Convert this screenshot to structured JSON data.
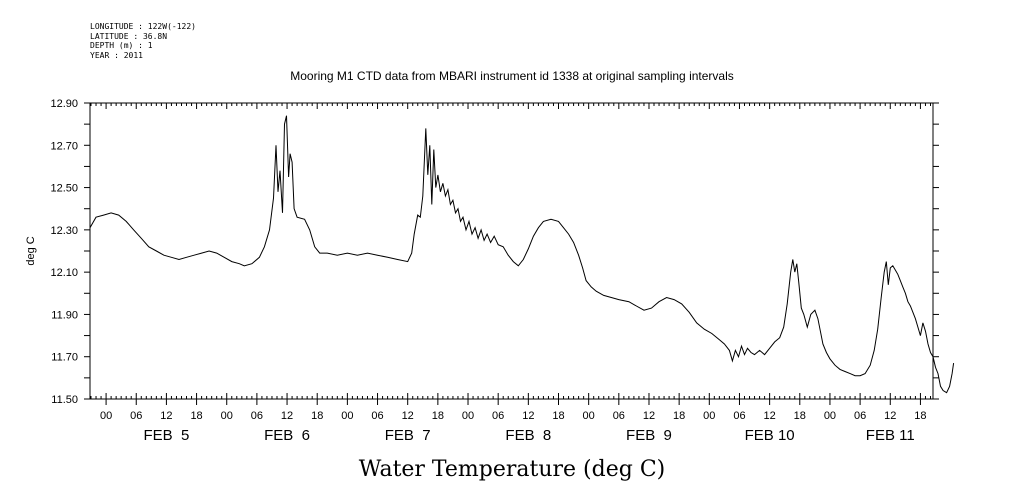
{
  "header": {
    "longitude": "LONGITUDE : 122W(-122)",
    "latitude": "LATITUDE : 36.8N",
    "depth": "DEPTH (m) : 1",
    "year": "YEAR : 2011"
  },
  "chart_data": {
    "type": "line",
    "title": "Mooring M1 CTD data from MBARI instrument id 1338 at original sampling intervals",
    "xlabel": "Water Temperature (deg C)",
    "ylabel": "deg C",
    "x_unit": "hours since FEB 4 00:00 (2011)",
    "xlim": [
      20.8,
      188.5
    ],
    "ylim": [
      11.5,
      12.9
    ],
    "y_ticks": [
      "11.50",
      "11.70",
      "11.90",
      "12.10",
      "12.30",
      "12.50",
      "12.70",
      "12.90"
    ],
    "x_hour_labels": [
      "00",
      "06",
      "12",
      "18"
    ],
    "day_labels": [
      "FEB  5",
      "FEB  6",
      "FEB  7",
      "FEB  8",
      "FEB  9",
      "FEB 10",
      "FEB 11"
    ],
    "grid": false,
    "series": [
      {
        "color": "#000000",
        "points": [
          [
            20.8,
            12.31
          ],
          [
            22,
            12.36
          ],
          [
            23.5,
            12.37
          ],
          [
            25,
            12.38
          ],
          [
            26.5,
            12.37
          ],
          [
            28,
            12.34
          ],
          [
            29.5,
            12.3
          ],
          [
            31,
            12.26
          ],
          [
            32.5,
            12.22
          ],
          [
            34,
            12.2
          ],
          [
            35.5,
            12.18
          ],
          [
            37,
            12.17
          ],
          [
            38.5,
            12.16
          ],
          [
            40,
            12.17
          ],
          [
            41.5,
            12.18
          ],
          [
            43,
            12.19
          ],
          [
            44.5,
            12.2
          ],
          [
            46,
            12.19
          ],
          [
            47.5,
            12.17
          ],
          [
            49,
            12.15
          ],
          [
            50.5,
            12.14
          ],
          [
            51.5,
            12.13
          ],
          [
            53,
            12.14
          ],
          [
            54.5,
            12.17
          ],
          [
            55.5,
            12.22
          ],
          [
            56.5,
            12.3
          ],
          [
            57.3,
            12.45
          ],
          [
            57.8,
            12.7
          ],
          [
            58.2,
            12.48
          ],
          [
            58.6,
            12.58
          ],
          [
            59.1,
            12.38
          ],
          [
            59.5,
            12.8
          ],
          [
            59.9,
            12.84
          ],
          [
            60.3,
            12.55
          ],
          [
            60.6,
            12.66
          ],
          [
            61,
            12.62
          ],
          [
            61.4,
            12.4
          ],
          [
            62,
            12.36
          ],
          [
            63.5,
            12.35
          ],
          [
            64.5,
            12.3
          ],
          [
            65.5,
            12.22
          ],
          [
            66.5,
            12.19
          ],
          [
            68,
            12.19
          ],
          [
            70,
            12.18
          ],
          [
            72,
            12.19
          ],
          [
            74,
            12.18
          ],
          [
            76,
            12.19
          ],
          [
            78,
            12.18
          ],
          [
            80,
            12.17
          ],
          [
            82,
            12.16
          ],
          [
            84,
            12.15
          ],
          [
            84.8,
            12.19
          ],
          [
            85.3,
            12.28
          ],
          [
            86,
            12.37
          ],
          [
            86.5,
            12.36
          ],
          [
            87,
            12.46
          ],
          [
            87.6,
            12.78
          ],
          [
            88,
            12.56
          ],
          [
            88.4,
            12.7
          ],
          [
            88.8,
            12.42
          ],
          [
            89.2,
            12.68
          ],
          [
            89.6,
            12.5
          ],
          [
            90,
            12.56
          ],
          [
            90.5,
            12.48
          ],
          [
            91,
            12.52
          ],
          [
            91.5,
            12.46
          ],
          [
            92,
            12.49
          ],
          [
            92.5,
            12.42
          ],
          [
            93,
            12.44
          ],
          [
            93.5,
            12.38
          ],
          [
            94,
            12.4
          ],
          [
            94.5,
            12.34
          ],
          [
            95,
            12.36
          ],
          [
            95.6,
            12.3
          ],
          [
            96.2,
            12.34
          ],
          [
            96.8,
            12.28
          ],
          [
            97.4,
            12.31
          ],
          [
            98,
            12.26
          ],
          [
            98.6,
            12.3
          ],
          [
            99.2,
            12.25
          ],
          [
            99.8,
            12.28
          ],
          [
            100.5,
            12.24
          ],
          [
            101.2,
            12.27
          ],
          [
            102,
            12.23
          ],
          [
            103,
            12.22
          ],
          [
            104,
            12.18
          ],
          [
            105,
            12.15
          ],
          [
            106,
            12.13
          ],
          [
            107,
            12.16
          ],
          [
            108,
            12.21
          ],
          [
            109,
            12.27
          ],
          [
            110,
            12.31
          ],
          [
            111,
            12.34
          ],
          [
            112.5,
            12.35
          ],
          [
            114,
            12.34
          ],
          [
            115,
            12.31
          ],
          [
            116,
            12.28
          ],
          [
            117,
            12.24
          ],
          [
            118,
            12.18
          ],
          [
            118.8,
            12.12
          ],
          [
            119.5,
            12.06
          ],
          [
            120.5,
            12.03
          ],
          [
            121.5,
            12.01
          ],
          [
            123,
            11.99
          ],
          [
            124.5,
            11.98
          ],
          [
            126,
            11.97
          ],
          [
            128,
            11.96
          ],
          [
            129.5,
            11.94
          ],
          [
            131,
            11.92
          ],
          [
            132.5,
            11.93
          ],
          [
            134,
            11.96
          ],
          [
            135.5,
            11.98
          ],
          [
            137,
            11.97
          ],
          [
            138.5,
            11.95
          ],
          [
            140,
            11.91
          ],
          [
            141.5,
            11.86
          ],
          [
            143,
            11.83
          ],
          [
            144.5,
            11.81
          ],
          [
            146,
            11.78
          ],
          [
            147,
            11.76
          ],
          [
            148,
            11.73
          ],
          [
            148.6,
            11.68
          ],
          [
            149.2,
            11.73
          ],
          [
            149.8,
            11.7
          ],
          [
            150.4,
            11.75
          ],
          [
            151,
            11.71
          ],
          [
            151.6,
            11.74
          ],
          [
            152.3,
            11.72
          ],
          [
            153,
            11.71
          ],
          [
            154,
            11.73
          ],
          [
            155,
            11.71
          ],
          [
            156,
            11.74
          ],
          [
            157,
            11.77
          ],
          [
            158,
            11.79
          ],
          [
            158.8,
            11.84
          ],
          [
            159.5,
            11.95
          ],
          [
            160.2,
            12.1
          ],
          [
            160.6,
            12.16
          ],
          [
            161,
            12.1
          ],
          [
            161.4,
            12.14
          ],
          [
            161.8,
            12.05
          ],
          [
            162.3,
            11.93
          ],
          [
            162.8,
            11.9
          ],
          [
            163.5,
            11.84
          ],
          [
            164.2,
            11.9
          ],
          [
            165,
            11.92
          ],
          [
            165.6,
            11.88
          ],
          [
            166.1,
            11.82
          ],
          [
            166.6,
            11.76
          ],
          [
            167.3,
            11.72
          ],
          [
            168,
            11.69
          ],
          [
            169,
            11.66
          ],
          [
            170,
            11.64
          ],
          [
            171,
            11.63
          ],
          [
            172,
            11.62
          ],
          [
            173,
            11.61
          ],
          [
            174,
            11.61
          ],
          [
            175,
            11.62
          ],
          [
            176,
            11.66
          ],
          [
            176.8,
            11.73
          ],
          [
            177.5,
            11.83
          ],
          [
            178.2,
            11.98
          ],
          [
            178.8,
            12.1
          ],
          [
            179.2,
            12.15
          ],
          [
            179.6,
            12.04
          ],
          [
            180,
            12.12
          ],
          [
            180.5,
            12.13
          ],
          [
            181,
            12.11
          ],
          [
            181.5,
            12.09
          ],
          [
            182,
            12.06
          ],
          [
            182.5,
            12.03
          ],
          [
            183,
            12.0
          ],
          [
            183.5,
            11.96
          ],
          [
            184,
            11.94
          ],
          [
            184.5,
            11.91
          ],
          [
            185,
            11.88
          ],
          [
            185.5,
            11.84
          ],
          [
            186,
            11.8
          ],
          [
            186.5,
            11.86
          ],
          [
            187,
            11.82
          ],
          [
            187.5,
            11.76
          ],
          [
            188,
            11.72
          ],
          [
            188.5,
            11.7
          ],
          [
            189,
            11.65
          ],
          [
            189.5,
            11.62
          ],
          [
            190,
            11.56
          ],
          [
            190.5,
            11.54
          ],
          [
            191.2,
            11.53
          ],
          [
            191.8,
            11.56
          ],
          [
            192.3,
            11.62
          ],
          [
            192.6,
            11.67
          ]
        ]
      }
    ]
  }
}
